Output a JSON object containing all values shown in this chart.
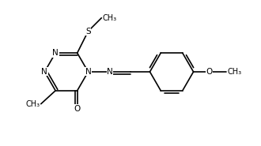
{
  "bg_color": "#ffffff",
  "line_color": "#000000",
  "bond_width": 1.2,
  "font_size": 7.5,
  "fig_width": 3.3,
  "fig_height": 1.85,
  "dpi": 100,
  "xlim": [
    0,
    10.0
  ],
  "ylim": [
    0,
    6.0
  ]
}
